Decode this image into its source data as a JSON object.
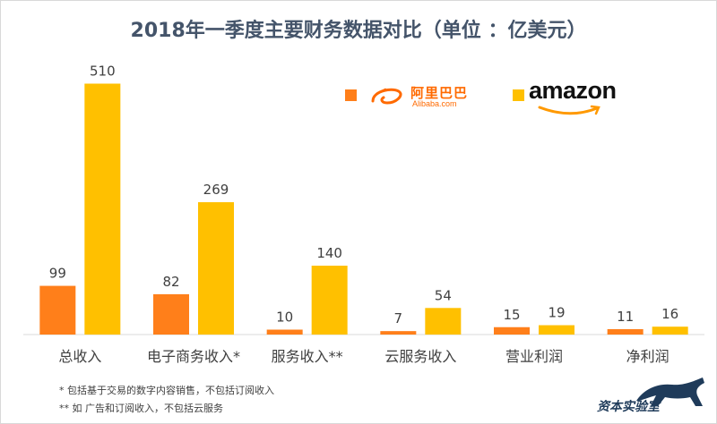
{
  "chart_data": {
    "type": "bar",
    "title": "2018年一季度主要财务数据对比（单位 ：亿美元）",
    "categories": [
      "总收入",
      "电子商务收入*",
      "服务收入**",
      "云服务收入",
      "营业利润",
      "净利润"
    ],
    "series": [
      {
        "name": "阿里巴巴",
        "color": "#ff7f1a",
        "values": [
          99,
          82,
          10,
          7,
          15,
          11
        ]
      },
      {
        "name": "amazon",
        "color": "#ffc000",
        "values": [
          510,
          269,
          140,
          54,
          19,
          16
        ]
      }
    ],
    "ylim": [
      0,
      560
    ],
    "grid": false,
    "legend": "top-right"
  },
  "legend": {
    "alibaba_cn": "阿里巴巴",
    "alibaba_en": "Alibaba.com",
    "amazon": "amazon"
  },
  "footnotes": [
    "*  包括基于交易的数字内容销售，不包括订阅收入",
    "** 如 广告和订阅收入，不包括云服务"
  ],
  "brand": "资本实验室"
}
